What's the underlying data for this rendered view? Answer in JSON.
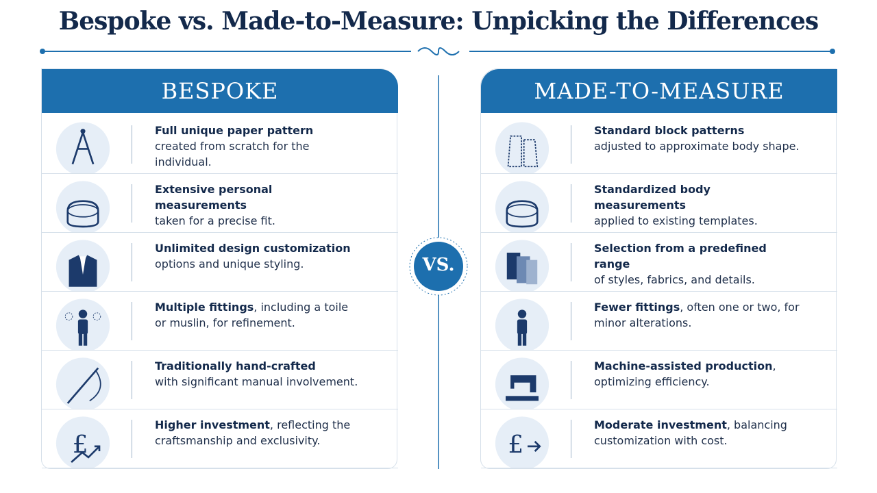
{
  "header": {
    "title": "Bespoke vs. Made-to-Measure: Unpicking the Differences"
  },
  "divider": {
    "label": "VS."
  },
  "columns": [
    {
      "title": "BESPOKE",
      "rows": [
        {
          "strong": "Full unique paper pattern",
          "text": "created from scratch for the individual."
        },
        {
          "strong": "Extensive personal measurements",
          "text": "taken for a precise fit."
        },
        {
          "strong": "Unlimited design customization",
          "text": "options and unique styling."
        },
        {
          "strong": "Multiple fittings",
          "text": ", including a toile or muslin, for refinement."
        },
        {
          "strong": "Traditionally hand-crafted",
          "text": "with significant manual involvement."
        },
        {
          "strong": "Higher investment",
          "text": ", reflecting the craftsmanship and exclusivity."
        }
      ]
    },
    {
      "title": "MADE-TO-MEASURE",
      "rows": [
        {
          "strong": "Standard block patterns",
          "text": "adjusted to approximate body shape."
        },
        {
          "strong": "Standardized body measurements",
          "text": "applied to existing templates."
        },
        {
          "strong": "Selection from a predefined range",
          "text": "of styles, fabrics, and details."
        },
        {
          "strong": "Fewer fittings",
          "text": ", often one or two, for minor alterations."
        },
        {
          "strong": "Machine-assisted production",
          "text": ", optimizing efficiency."
        },
        {
          "strong": "Moderate investment",
          "text": ", balancing customization with cost."
        }
      ]
    }
  ]
}
